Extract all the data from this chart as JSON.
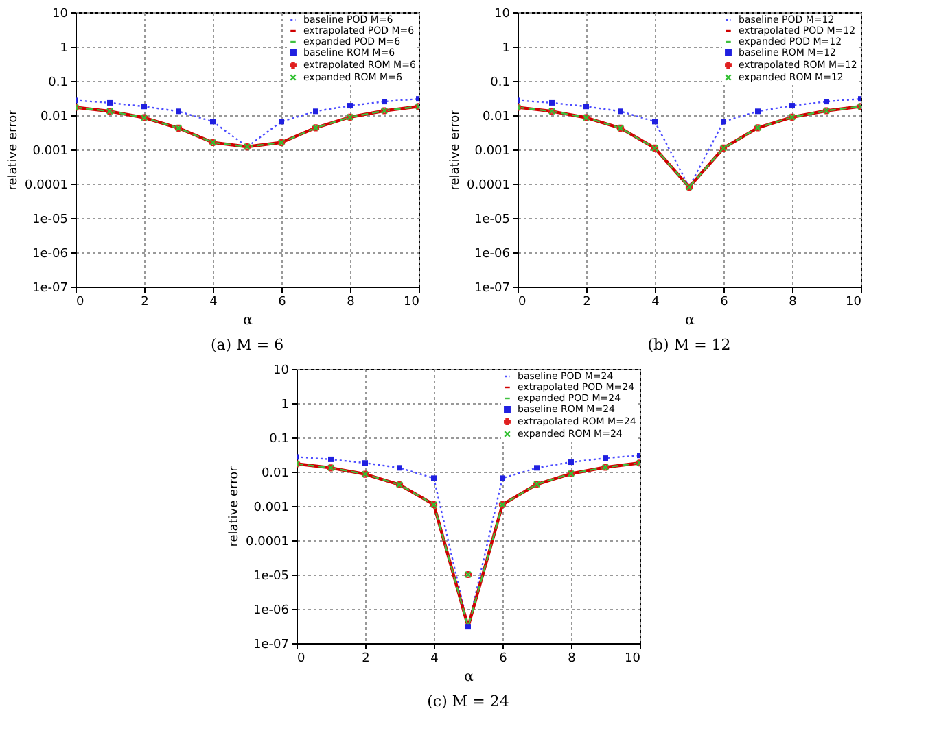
{
  "chart_data": [
    {
      "type": "line",
      "title": "(a) M = 6",
      "xlabel": "α",
      "ylabel": "relative error",
      "log": "y",
      "grid": true,
      "legend": "top right",
      "xlim": [
        0,
        10
      ],
      "xticks": [
        0,
        2,
        4,
        6,
        8,
        10
      ],
      "ylim": [
        1e-07,
        10
      ],
      "yticks": [
        {
          "value": 1e-07,
          "label": "1e-07"
        },
        {
          "value": 1e-06,
          "label": "1e-06"
        },
        {
          "value": 1e-05,
          "label": "1e-05"
        },
        0.0001,
        0.001,
        0.01,
        0.1,
        1,
        10
      ],
      "x": [
        0,
        1,
        2,
        3,
        4,
        5,
        6,
        7,
        8,
        9,
        10
      ],
      "series": [
        {
          "name": "baseline POD M=6",
          "type": "line",
          "line_style": "dotted",
          "marker": "none",
          "color": "#4a4aff",
          "values": [
            0.027,
            0.023,
            0.018,
            0.013,
            0.0065,
            0.0012,
            0.0065,
            0.013,
            0.019,
            0.025,
            0.03
          ]
        },
        {
          "name": "extrapolated POD M=6",
          "type": "line",
          "line_style": "solid",
          "marker": "none",
          "color": "#d00000",
          "values": [
            0.017,
            0.013,
            0.0085,
            0.0042,
            0.0016,
            0.0012,
            0.0016,
            0.0043,
            0.0088,
            0.0135,
            0.018
          ]
        },
        {
          "name": "expanded POD M=6",
          "type": "line",
          "line_style": "dashed",
          "marker": "none",
          "color": "#40c040",
          "values": [
            0.017,
            0.013,
            0.0085,
            0.0042,
            0.0016,
            0.0012,
            0.0016,
            0.0043,
            0.0088,
            0.0135,
            0.018
          ]
        },
        {
          "name": "baseline ROM M=6",
          "type": "scatter",
          "marker": "square",
          "color": "#2020e0",
          "values": [
            0.027,
            0.023,
            0.018,
            0.013,
            0.0065,
            null,
            0.0065,
            0.013,
            0.019,
            0.025,
            0.03
          ]
        },
        {
          "name": "extrapolated ROM M=6",
          "type": "scatter",
          "marker": "cross",
          "color": "#e02020",
          "values": [
            0.017,
            0.013,
            0.0085,
            0.0042,
            0.0016,
            0.0012,
            0.0016,
            0.0043,
            0.0088,
            0.0135,
            0.018
          ]
        },
        {
          "name": "expanded ROM M=6",
          "type": "scatter",
          "marker": "x",
          "color": "#30c030",
          "values": [
            0.017,
            0.013,
            0.0085,
            0.0042,
            0.0016,
            0.0012,
            0.0016,
            0.0043,
            0.0088,
            0.0135,
            0.018
          ]
        }
      ]
    },
    {
      "type": "line",
      "title": "(b) M = 12",
      "xlabel": "α",
      "ylabel": "relative error",
      "log": "y",
      "grid": true,
      "legend": "top right",
      "xlim": [
        0,
        10
      ],
      "xticks": [
        0,
        2,
        4,
        6,
        8,
        10
      ],
      "ylim": [
        1e-07,
        10
      ],
      "yticks": [
        {
          "value": 1e-07,
          "label": "1e-07"
        },
        {
          "value": 1e-06,
          "label": "1e-06"
        },
        {
          "value": 1e-05,
          "label": "1e-05"
        },
        0.0001,
        0.001,
        0.01,
        0.1,
        1,
        10
      ],
      "x": [
        0,
        1,
        2,
        3,
        4,
        5,
        6,
        7,
        8,
        9,
        10
      ],
      "series": [
        {
          "name": "baseline POD M=12",
          "type": "line",
          "line_style": "dotted",
          "marker": "none",
          "color": "#4a4aff",
          "values": [
            0.027,
            0.023,
            0.018,
            0.013,
            0.0065,
            8e-05,
            0.0065,
            0.013,
            0.019,
            0.025,
            0.03
          ]
        },
        {
          "name": "extrapolated POD M=12",
          "type": "line",
          "line_style": "solid",
          "marker": "none",
          "color": "#d00000",
          "values": [
            0.017,
            0.013,
            0.0085,
            0.0042,
            0.0011,
            8e-05,
            0.0011,
            0.0043,
            0.0088,
            0.0135,
            0.018
          ]
        },
        {
          "name": "expanded POD M=12",
          "type": "line",
          "line_style": "dashed",
          "marker": "none",
          "color": "#40c040",
          "values": [
            0.017,
            0.013,
            0.0085,
            0.0042,
            0.0011,
            8e-05,
            0.0011,
            0.0043,
            0.0088,
            0.0135,
            0.018
          ]
        },
        {
          "name": "baseline ROM M=12",
          "type": "scatter",
          "marker": "square",
          "color": "#2020e0",
          "values": [
            0.027,
            0.023,
            0.018,
            0.013,
            0.0065,
            null,
            0.0065,
            0.013,
            0.019,
            0.025,
            0.03
          ]
        },
        {
          "name": "extrapolated ROM M=12",
          "type": "scatter",
          "marker": "cross",
          "color": "#e02020",
          "values": [
            0.017,
            0.013,
            0.0085,
            0.0042,
            0.0011,
            8e-05,
            0.0011,
            0.0043,
            0.0088,
            0.0135,
            0.018
          ]
        },
        {
          "name": "expanded ROM M=12",
          "type": "scatter",
          "marker": "x",
          "color": "#30c030",
          "values": [
            0.017,
            0.013,
            0.0085,
            0.0042,
            0.0011,
            8e-05,
            0.0011,
            0.0043,
            0.0088,
            0.0135,
            0.018
          ]
        }
      ]
    },
    {
      "type": "line",
      "title": "(c) M = 24",
      "xlabel": "α",
      "ylabel": "relative error",
      "log": "y",
      "grid": true,
      "legend": "top right",
      "xlim": [
        0,
        10
      ],
      "xticks": [
        0,
        2,
        4,
        6,
        8,
        10
      ],
      "ylim": [
        1e-07,
        10
      ],
      "yticks": [
        {
          "value": 1e-07,
          "label": "1e-07"
        },
        {
          "value": 1e-06,
          "label": "1e-06"
        },
        {
          "value": 1e-05,
          "label": "1e-05"
        },
        0.0001,
        0.001,
        0.01,
        0.1,
        1,
        10
      ],
      "x": [
        0,
        1,
        2,
        3,
        4,
        5,
        6,
        7,
        8,
        9,
        10
      ],
      "series": [
        {
          "name": "baseline POD M=24",
          "type": "line",
          "line_style": "dotted",
          "marker": "none",
          "color": "#4a4aff",
          "values": [
            0.027,
            0.023,
            0.018,
            0.013,
            0.0065,
            3e-07,
            0.0065,
            0.013,
            0.019,
            0.025,
            0.03
          ]
        },
        {
          "name": "extrapolated POD M=24",
          "type": "line",
          "line_style": "solid",
          "marker": "none",
          "color": "#d00000",
          "values": [
            0.017,
            0.013,
            0.0085,
            0.0042,
            0.0011,
            3e-07,
            0.0011,
            0.0043,
            0.0088,
            0.0135,
            0.018
          ]
        },
        {
          "name": "expanded POD M=24",
          "type": "line",
          "line_style": "dashed",
          "marker": "none",
          "color": "#40c040",
          "values": [
            0.017,
            0.013,
            0.0085,
            0.0042,
            0.0011,
            3e-07,
            0.0011,
            0.0043,
            0.0088,
            0.0135,
            0.018
          ]
        },
        {
          "name": "baseline ROM M=24",
          "type": "scatter",
          "marker": "square",
          "color": "#2020e0",
          "values": [
            0.027,
            0.023,
            0.018,
            0.013,
            0.0065,
            3e-07,
            0.0065,
            0.013,
            0.019,
            0.025,
            0.03
          ]
        },
        {
          "name": "extrapolated ROM M=24",
          "type": "scatter",
          "marker": "cross",
          "color": "#e02020",
          "values": [
            0.017,
            0.013,
            0.0085,
            0.0042,
            0.0011,
            1e-05,
            0.0011,
            0.0043,
            0.0088,
            0.0135,
            0.018
          ]
        },
        {
          "name": "expanded ROM M=24",
          "type": "scatter",
          "marker": "x",
          "color": "#30c030",
          "values": [
            0.017,
            0.013,
            0.0085,
            0.0042,
            0.0011,
            1e-05,
            0.0011,
            0.0043,
            0.0088,
            0.0135,
            0.018
          ]
        }
      ]
    }
  ]
}
